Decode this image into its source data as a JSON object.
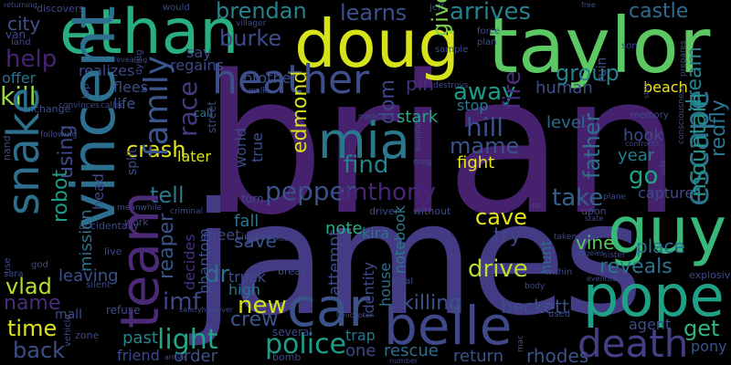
{
  "words": [
    {
      "text": "brian",
      "color": "#46216e"
    },
    {
      "text": "james",
      "color": "#433b84"
    },
    {
      "text": "taylor",
      "color": "#5cc863"
    },
    {
      "text": "doug",
      "color": "#d6e21a"
    },
    {
      "text": "ethan",
      "color": "#29af7f"
    },
    {
      "text": "vincent",
      "color": "#2d6f8e"
    },
    {
      "text": "snake",
      "color": "#2d708e"
    },
    {
      "text": "guy",
      "color": "#37b878"
    },
    {
      "text": "pope",
      "color": "#1fa187"
    },
    {
      "text": "belle",
      "color": "#3f4889"
    },
    {
      "text": "car",
      "color": "#3b528b"
    },
    {
      "text": "mia",
      "color": "#2a788e"
    },
    {
      "text": "heather",
      "color": "#3d4e8a"
    },
    {
      "text": "team",
      "color": "#4c2a78"
    },
    {
      "text": "death",
      "color": "#423f85"
    },
    {
      "text": "escape",
      "color": "#2c728e"
    },
    {
      "text": "family",
      "color": "#3a548c"
    },
    {
      "text": "police",
      "color": "#1e9c89"
    },
    {
      "text": "light",
      "color": "#22a785"
    },
    {
      "text": "race",
      "color": "#453781"
    },
    {
      "text": "fire",
      "color": "#472d7b"
    },
    {
      "text": "brendan",
      "color": "#25848e"
    },
    {
      "text": "learns",
      "color": "#3b518b"
    },
    {
      "text": "arrives",
      "color": "#27808e"
    },
    {
      "text": "castle",
      "color": "#2e6d8e"
    },
    {
      "text": "burke",
      "color": "#3e4c8a"
    },
    {
      "text": "give",
      "color": "#7ad151"
    },
    {
      "text": "help",
      "color": "#482374"
    },
    {
      "text": "kill",
      "color": "#97d83f"
    },
    {
      "text": "city",
      "color": "#3b528b"
    },
    {
      "text": "offer",
      "color": "#2c738e"
    },
    {
      "text": "group",
      "color": "#26828e"
    },
    {
      "text": "beach",
      "color": "#f1e51d"
    },
    {
      "text": "dream",
      "color": "#26828e"
    },
    {
      "text": "redfly",
      "color": "#2b758e"
    },
    {
      "text": "mountain",
      "color": "#1f958b"
    },
    {
      "text": "away",
      "color": "#1f9a8a"
    },
    {
      "text": "dom",
      "color": "#3f4788"
    },
    {
      "text": "pin",
      "color": "#46307e"
    },
    {
      "text": "hill",
      "color": "#3b518b"
    },
    {
      "text": "stop",
      "color": "#2b758e"
    },
    {
      "text": "stark",
      "color": "#22a884"
    },
    {
      "text": "mame",
      "color": "#3b528b"
    },
    {
      "text": "father",
      "color": "#2c728e"
    },
    {
      "text": "level",
      "color": "#30698e"
    },
    {
      "text": "hook",
      "color": "#3e4a89"
    },
    {
      "text": "year",
      "color": "#277f8e"
    },
    {
      "text": "edmond",
      "color": "#d8e219"
    },
    {
      "text": "find",
      "color": "#25838e"
    },
    {
      "text": "fight",
      "color": "#ece51b"
    },
    {
      "text": "go",
      "color": "#21a685"
    },
    {
      "text": "crash",
      "color": "#e5e419"
    },
    {
      "text": "robot",
      "color": "#1e9c89"
    },
    {
      "text": "using",
      "color": "#3e4989"
    },
    {
      "text": "tell",
      "color": "#2a788e"
    },
    {
      "text": "pepper",
      "color": "#3b528b"
    },
    {
      "text": "anthony",
      "color": "#482576"
    },
    {
      "text": "cave",
      "color": "#e5e419"
    },
    {
      "text": "take",
      "color": "#34618d"
    },
    {
      "text": "try",
      "color": "#3f4788"
    },
    {
      "text": "kira",
      "color": "#2c738e"
    },
    {
      "text": "capture",
      "color": "#3e4989"
    },
    {
      "text": "vlad",
      "color": "#b5de2b"
    },
    {
      "text": "name",
      "color": "#472d7b"
    },
    {
      "text": "time",
      "color": "#dde318"
    },
    {
      "text": "back",
      "color": "#3d4e8a"
    },
    {
      "text": "mission",
      "color": "#2e6f8e"
    },
    {
      "text": "reaper",
      "color": "#3b528b"
    },
    {
      "text": "imf",
      "color": "#3f4889"
    },
    {
      "text": "dr",
      "color": "#2d718e"
    },
    {
      "text": "save",
      "color": "#3b528b"
    },
    {
      "text": "drive",
      "color": "#b8de29"
    },
    {
      "text": "reveals",
      "color": "#2b748e"
    },
    {
      "text": "vine",
      "color": "#5cc863"
    },
    {
      "text": "place",
      "color": "#2d708e"
    },
    {
      "text": "new",
      "color": "#d5e21a"
    },
    {
      "text": "crew",
      "color": "#3a548c"
    },
    {
      "text": "killing",
      "color": "#3b518b"
    },
    {
      "text": "beckett",
      "color": "#3d4e8a"
    },
    {
      "text": "get",
      "color": "#32b67a"
    },
    {
      "text": "pony",
      "color": "#3a538b"
    },
    {
      "text": "agent",
      "color": "#3e4c8a"
    },
    {
      "text": "rescue",
      "color": "#2e6e8e"
    },
    {
      "text": "return",
      "color": "#3b528b"
    },
    {
      "text": "rhodes",
      "color": "#3b528b"
    },
    {
      "text": "one",
      "color": "#3f4889"
    },
    {
      "text": "trap",
      "color": "#2b758e"
    },
    {
      "text": "order",
      "color": "#3b528b"
    },
    {
      "text": "past",
      "color": "#25848e"
    },
    {
      "text": "friend",
      "color": "#3e4989"
    },
    {
      "text": "meet",
      "color": "#3f4889"
    },
    {
      "text": "fall",
      "color": "#2c728e"
    },
    {
      "text": "truck",
      "color": "#3d4e8a"
    },
    {
      "text": "high",
      "color": "#2c738e"
    },
    {
      "text": "decides",
      "color": "#46307e"
    },
    {
      "text": "phantom",
      "color": "#3b528b"
    },
    {
      "text": "attempt",
      "color": "#3e4989"
    },
    {
      "text": "note",
      "color": "#29af7f"
    },
    {
      "text": "notebook",
      "color": "#2a778e"
    },
    {
      "text": "identity",
      "color": "#3e4989"
    },
    {
      "text": "house",
      "color": "#2c728e"
    },
    {
      "text": "hunt",
      "color": "#2f6b8e"
    },
    {
      "text": "killed",
      "color": "#3d4e8a"
    },
    {
      "text": "human",
      "color": "#3b528b"
    },
    {
      "text": "brother",
      "color": "#3e4a89"
    },
    {
      "text": "say",
      "color": "#3e4989"
    },
    {
      "text": "regains",
      "color": "#2c728e"
    },
    {
      "text": "call",
      "color": "#3e4c8a"
    },
    {
      "text": "flees",
      "color": "#3b528b"
    },
    {
      "text": "life",
      "color": "#d8e219"
    },
    {
      "text": "later",
      "color": "#3e4a89"
    },
    {
      "text": "world",
      "color": "#3b528b"
    },
    {
      "text": "true",
      "color": "#3e4a89"
    },
    {
      "text": "realizes",
      "color": "#3e4a89"
    },
    {
      "text": "split",
      "color": "#3e4a89"
    },
    {
      "text": "ruin",
      "color": "#3e4a89"
    },
    {
      "text": "memory",
      "color": "#3e4a89"
    },
    {
      "text": "used",
      "color": "#3e4a89"
    },
    {
      "text": "within",
      "color": "#3e4a89"
    },
    {
      "text": "leaving",
      "color": "#3b528b"
    },
    {
      "text": "mall",
      "color": "#3e4a89"
    },
    {
      "text": "refuse",
      "color": "#3e4a89"
    },
    {
      "text": "head",
      "color": "#3e4a89"
    },
    {
      "text": "zone",
      "color": "#3e4a89"
    },
    {
      "text": "break",
      "color": "#3e4a89"
    },
    {
      "text": "several",
      "color": "#3e4a89"
    },
    {
      "text": "turn",
      "color": "#3e4a89"
    },
    {
      "text": "work",
      "color": "#3e4a89"
    },
    {
      "text": "driver",
      "color": "#3e4a89"
    },
    {
      "text": "without",
      "color": "#3e4a89"
    },
    {
      "text": "upon",
      "color": "#3e4a89"
    },
    {
      "text": "vehicle",
      "color": "#3e4a89"
    },
    {
      "text": "exchange",
      "color": "#3e4a89"
    },
    {
      "text": "instead",
      "color": "#3e4a89"
    },
    {
      "text": "street",
      "color": "#3e4a89"
    },
    {
      "text": "van",
      "color": "#3e4a89"
    },
    {
      "text": "land",
      "color": "#3e4a89"
    },
    {
      "text": "discovers",
      "color": "#3e4a89"
    },
    {
      "text": "returning",
      "color": "#3e4a89"
    },
    {
      "text": "criminal",
      "color": "#3e4a89"
    },
    {
      "text": "would",
      "color": "#3e4a89"
    },
    {
      "text": "jeff",
      "color": "#3e4a89"
    },
    {
      "text": "force",
      "color": "#3e4a89"
    },
    {
      "text": "plan",
      "color": "#3e4a89"
    },
    {
      "text": "sample",
      "color": "#3e4a89"
    },
    {
      "text": "son",
      "color": "#3e4a89"
    },
    {
      "text": "villager",
      "color": "#3e4a89"
    },
    {
      "text": "free",
      "color": "#3e4a89"
    },
    {
      "text": "prepares",
      "color": "#3e4a89"
    },
    {
      "text": "dying",
      "color": "#3e4a89"
    },
    {
      "text": "walk",
      "color": "#3e4a89"
    },
    {
      "text": "revealing",
      "color": "#3e4a89"
    },
    {
      "text": "consciousness",
      "color": "#3e4a89"
    },
    {
      "text": "destroys",
      "color": "#3e4a89"
    },
    {
      "text": "meg",
      "color": "#3e4a89"
    },
    {
      "text": "safe",
      "color": "#3e4a89"
    },
    {
      "text": "confronts",
      "color": "#3e4a89"
    },
    {
      "text": "plane",
      "color": "#3e4a89"
    },
    {
      "text": "taken",
      "color": "#3e4a89"
    },
    {
      "text": "state",
      "color": "#3e4a89"
    },
    {
      "text": "start",
      "color": "#3e4a89"
    },
    {
      "text": "sister",
      "color": "#3e4a89"
    },
    {
      "text": "eventually",
      "color": "#3e4a89"
    },
    {
      "text": "explosive",
      "color": "#3e4a89"
    },
    {
      "text": "body",
      "color": "#3e4a89"
    },
    {
      "text": "steal",
      "color": "#3e4a89"
    },
    {
      "text": "los",
      "color": "#3e4a89"
    },
    {
      "text": "hospital",
      "color": "#3e4a89"
    },
    {
      "text": "angeles",
      "color": "#3e4a89"
    },
    {
      "text": "helicopter",
      "color": "#3e4a89"
    },
    {
      "text": "bomb",
      "color": "#3e4a89"
    },
    {
      "text": "safetyhowever",
      "color": "#3e4a89"
    },
    {
      "text": "arrive",
      "color": "#3e4a89"
    },
    {
      "text": "live",
      "color": "#3e4a89"
    },
    {
      "text": "god",
      "color": "#3e4a89"
    },
    {
      "text": "sara",
      "color": "#3e4a89"
    },
    {
      "text": "mac",
      "color": "#3e4a89"
    },
    {
      "text": "accidentally",
      "color": "#3e4a89"
    },
    {
      "text": "meanwhile",
      "color": "#3e4a89"
    },
    {
      "text": "number",
      "color": "#3e4a89"
    },
    {
      "text": "following",
      "color": "#3e4a89"
    },
    {
      "text": "convinces",
      "color": "#3e4a89"
    },
    {
      "text": "use",
      "color": "#3e4a89"
    },
    {
      "text": "called",
      "color": "#3e4a89"
    },
    {
      "text": "silent",
      "color": "#3e4a89"
    },
    {
      "text": "medical",
      "color": "#3e4a89"
    },
    {
      "text": "nand",
      "color": "#3e4a89"
    },
    {
      "text": "list",
      "color": "#3e4a89"
    },
    {
      "text": "top",
      "color": "#3e4a89"
    }
  ]
}
